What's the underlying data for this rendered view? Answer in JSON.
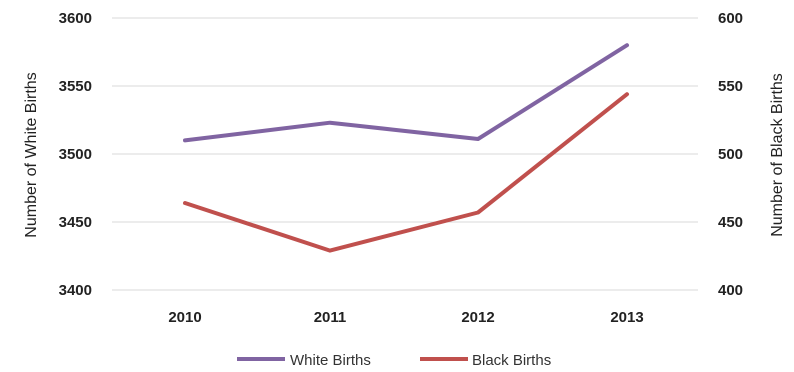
{
  "chart_data": {
    "type": "line",
    "categories": [
      "2010",
      "2011",
      "2012",
      "2013"
    ],
    "series": [
      {
        "name": "White Births",
        "axis": "left",
        "color": "#8064a2",
        "values": [
          3510,
          3523,
          3511,
          3580
        ]
      },
      {
        "name": "Black Births",
        "axis": "right",
        "color": "#c0504d",
        "values": [
          464,
          429,
          457,
          544
        ]
      }
    ],
    "left_axis": {
      "label": "Number of White Births",
      "range": [
        3400,
        3600
      ],
      "ticks": [
        "3400",
        "3450",
        "3500",
        "3550",
        "3600"
      ]
    },
    "right_axis": {
      "label": "Number of Black Births",
      "range": [
        400,
        600
      ],
      "ticks": [
        "400",
        "450",
        "500",
        "550",
        "600"
      ]
    },
    "grid": true,
    "legend_position": "bottom"
  }
}
